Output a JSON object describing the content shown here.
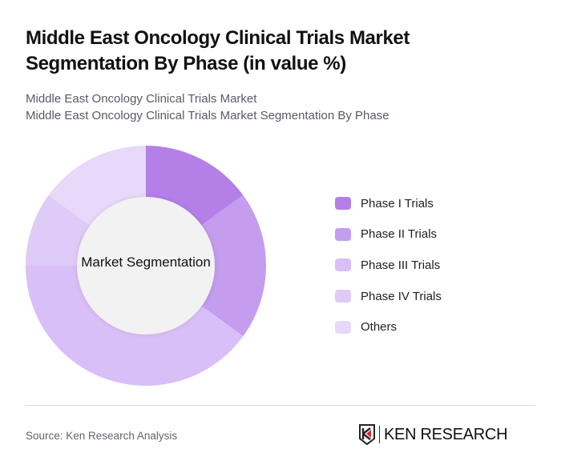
{
  "header": {
    "title": "Middle East Oncology Clinical Trials Market Segmentation By Phase (in value %)",
    "subtitle_line1": "Middle East Oncology Clinical Trials Market",
    "subtitle_line2": "Middle East Oncology Clinical Trials Market Segmentation By Phase"
  },
  "chart": {
    "center_label": "Market Segmentation"
  },
  "legend": {
    "items": [
      {
        "label": "Phase I Trials",
        "color": "#B480E8"
      },
      {
        "label": "Phase II Trials",
        "color": "#C49DEE"
      },
      {
        "label": "Phase III Trials",
        "color": "#D9BFF7"
      },
      {
        "label": "Phase IV Trials",
        "color": "#DFCBF7"
      },
      {
        "label": "Others",
        "color": "#E8D9FA"
      }
    ]
  },
  "footer": {
    "source": "Source: Ken Research Analysis",
    "logo_text": "KEN RESEARCH",
    "logo_icon": "ken-research-k-shield-icon"
  },
  "chart_data": {
    "type": "pie",
    "variant": "donut",
    "title": "Middle East Oncology Clinical Trials Market Segmentation By Phase (in value %)",
    "center_label": "Market Segmentation",
    "categories": [
      "Phase I Trials",
      "Phase II Trials",
      "Phase III Trials",
      "Phase IV Trials",
      "Others"
    ],
    "values": [
      15,
      20,
      40,
      10,
      15
    ],
    "colors": [
      "#B480E8",
      "#C49DEE",
      "#D9BFF7",
      "#DFCBF7",
      "#E8D9FA"
    ],
    "start_angle": "12 o'clock",
    "direction": "clockwise",
    "legend_position": "right",
    "unit": "%"
  }
}
